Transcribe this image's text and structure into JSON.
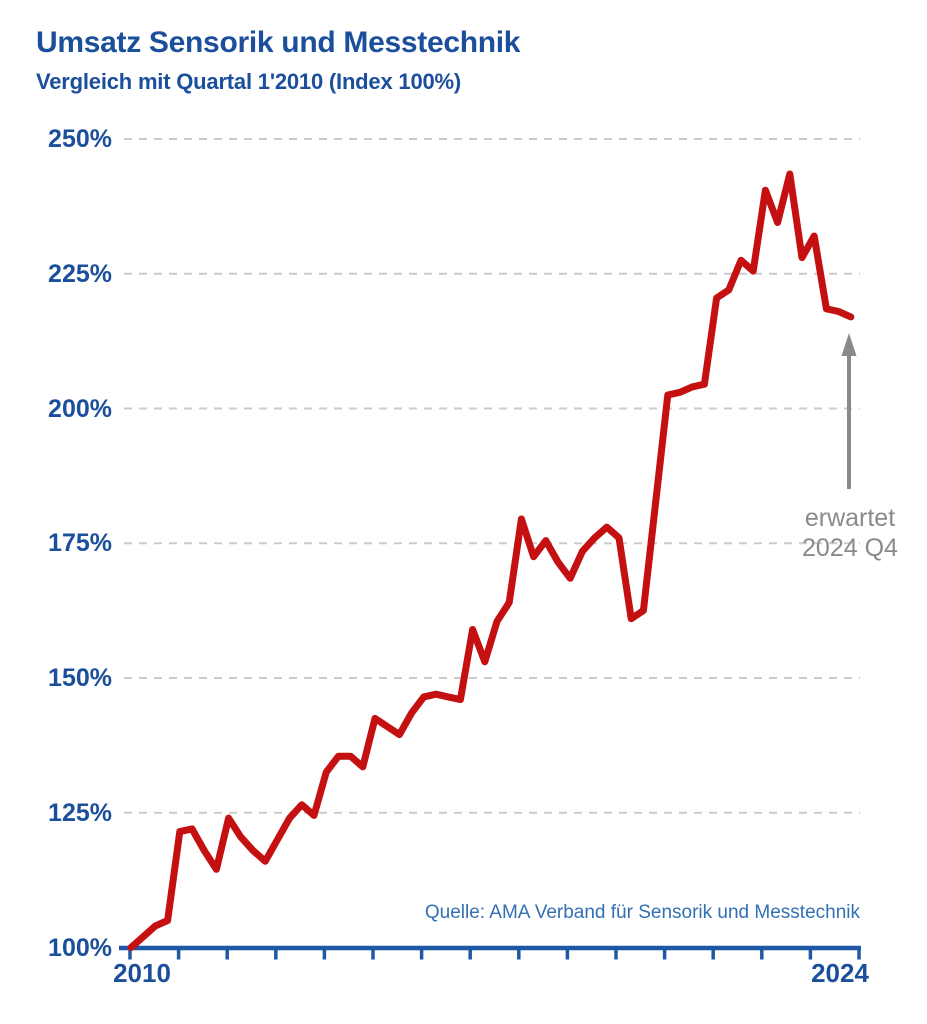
{
  "chart_data": {
    "type": "line",
    "title": "Umsatz Sensorik und Messtechnik",
    "subtitle": "Vergleich mit Quartal 1'2010 (Index 100%)",
    "source": "Quelle: AMA Verband für Sensorik und Messtechnik",
    "x_quarters": [
      "2010 Q1",
      "2010 Q2",
      "2010 Q3",
      "2010 Q4",
      "2011 Q1",
      "2011 Q2",
      "2011 Q3",
      "2011 Q4",
      "2012 Q1",
      "2012 Q2",
      "2012 Q3",
      "2012 Q4",
      "2013 Q1",
      "2013 Q2",
      "2013 Q3",
      "2013 Q4",
      "2014 Q1",
      "2014 Q2",
      "2014 Q3",
      "2014 Q4",
      "2015 Q1",
      "2015 Q2",
      "2015 Q3",
      "2015 Q4",
      "2016 Q1",
      "2016 Q2",
      "2016 Q3",
      "2016 Q4",
      "2017 Q1",
      "2017 Q2",
      "2017 Q3",
      "2017 Q4",
      "2018 Q1",
      "2018 Q2",
      "2018 Q3",
      "2018 Q4",
      "2019 Q1",
      "2019 Q2",
      "2019 Q3",
      "2019 Q4",
      "2020 Q1",
      "2020 Q2",
      "2020 Q3",
      "2020 Q4",
      "2021 Q1",
      "2021 Q2",
      "2021 Q3",
      "2021 Q4",
      "2022 Q1",
      "2022 Q2",
      "2022 Q3",
      "2022 Q4",
      "2023 Q1",
      "2023 Q2",
      "2023 Q3",
      "2023 Q4",
      "2024 Q1",
      "2024 Q2",
      "2024 Q3",
      "2024 Q4"
    ],
    "series": [
      {
        "name": "Umsatzindex (Quartal 1'2010 = 100%)",
        "values": [
          100,
          102,
          104,
          105,
          121.5,
          122,
          118,
          114.5,
          124,
          120.5,
          118,
          116,
          120,
          124,
          126.5,
          124.5,
          132.5,
          135.5,
          135.5,
          133.5,
          142.5,
          141,
          139.5,
          143.5,
          146.5,
          147,
          146.5,
          146,
          159,
          153,
          160.5,
          164,
          179.5,
          172.5,
          175.5,
          171.5,
          168.5,
          173.5,
          176,
          178,
          176,
          161,
          162.5,
          182.5,
          202.5,
          203,
          204,
          204.5,
          220.5,
          222,
          227.5,
          225.5,
          240.5,
          234.5,
          243.5,
          228,
          232,
          218.5,
          218,
          217
        ]
      }
    ],
    "ylim": [
      100,
      250
    ],
    "y_ticks": [
      {
        "value": 100,
        "label": "100%"
      },
      {
        "value": 125,
        "label": "125%"
      },
      {
        "value": 150,
        "label": "150%"
      },
      {
        "value": 175,
        "label": "175%"
      },
      {
        "value": 200,
        "label": "200%"
      },
      {
        "value": 225,
        "label": "225%"
      },
      {
        "value": 250,
        "label": "250%"
      }
    ],
    "x_axis_labels": [
      "2010",
      "2024"
    ],
    "x_year_boundary_ticks": 16,
    "grid": "horizontal-dashed",
    "legend": "none",
    "annotation": {
      "lines": [
        "erwartet",
        "2024 Q4"
      ],
      "arrow": "up",
      "points_to_quarter": "2024 Q4",
      "points_to_value": 217
    },
    "colors": {
      "line": "#c41010",
      "title": "#1b4f9c",
      "axis": "#1d57a5",
      "axis_labels": "#1b4f9c",
      "source": "#3270b3",
      "annotation": "#8a8a8a",
      "grid": "#cbcbcb",
      "background": "#ffffff"
    }
  }
}
